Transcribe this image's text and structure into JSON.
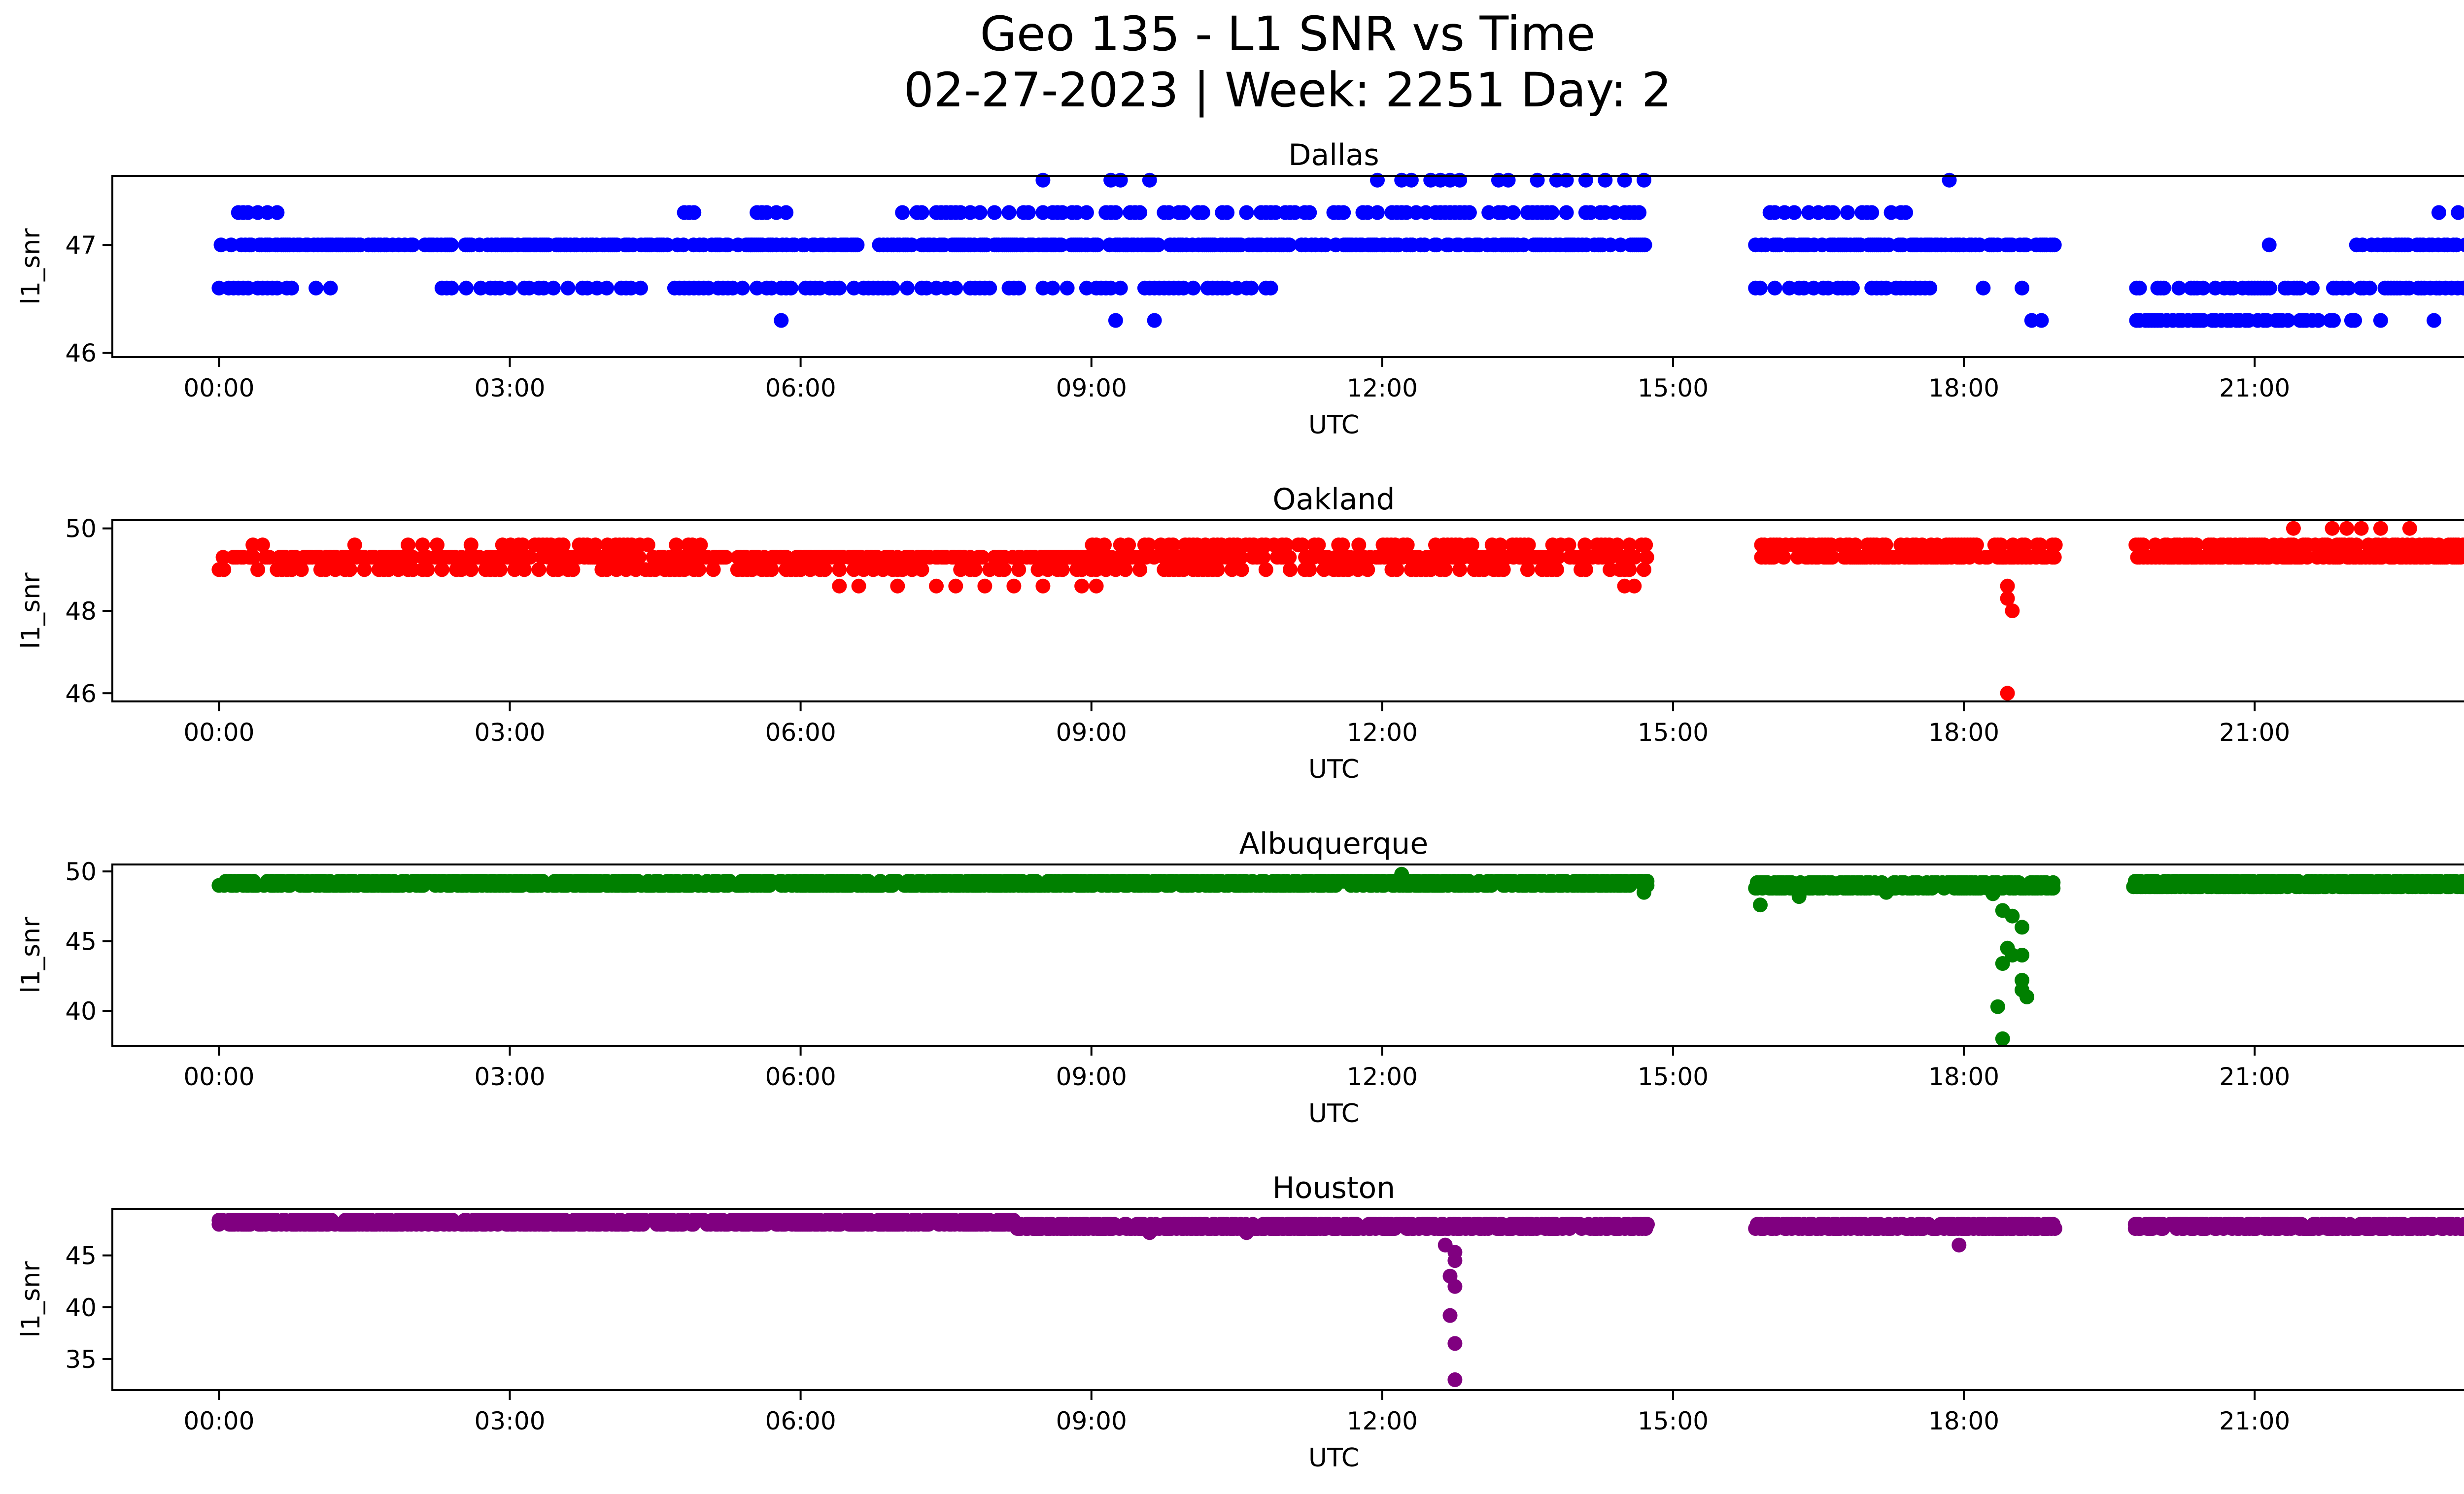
{
  "figure": {
    "title_line1": "Geo 135 - L1 SNR vs Time",
    "title_line2": "02-27-2023 | Week: 2251 Day: 2"
  },
  "chart_data": [
    {
      "type": "scatter",
      "title": "Dallas",
      "xlabel": "UTC",
      "ylabel": "l1_snr",
      "color": "#0000ff",
      "xlim": [
        -1.1,
        24.1
      ],
      "ylim": [
        45.96,
        47.64
      ],
      "x_ticks": [
        "00:00",
        "03:00",
        "06:00",
        "09:00",
        "12:00",
        "15:00",
        "18:00",
        "21:00",
        "00:00"
      ],
      "y_ticks": [
        46,
        47
      ],
      "segments": [
        {
          "start": 0.0,
          "end": 14.75,
          "levels": [
            47.0
          ],
          "density": 12
        },
        {
          "start": 0.0,
          "end": 11.3,
          "levels": [
            46.6
          ],
          "density": 5,
          "gaps": [
            [
              0.8,
              1.0
            ],
            [
              1.2,
              2.3
            ],
            [
              3.0,
              3.1
            ]
          ]
        },
        {
          "start": 0.15,
          "end": 14.75,
          "levels": [
            47.3
          ],
          "density": 5,
          "gaps": [
            [
              0.75,
              4.15
            ],
            [
              4.25,
              4.7
            ],
            [
              4.9,
              5.3
            ],
            [
              6.0,
              7.0
            ]
          ]
        },
        {
          "start": 15.85,
          "end": 18.95,
          "levels": [
            47.0
          ],
          "density": 12
        },
        {
          "start": 15.85,
          "end": 17.7,
          "levels": [
            46.6
          ],
          "density": 5
        },
        {
          "start": 16.0,
          "end": 17.7,
          "levels": [
            47.3
          ],
          "density": 5
        },
        {
          "start": 19.75,
          "end": 22.05,
          "levels": [
            46.3
          ],
          "density": 8
        },
        {
          "start": 19.75,
          "end": 24.0,
          "levels": [
            46.6
          ],
          "density": 8
        },
        {
          "start": 22.05,
          "end": 24.0,
          "levels": [
            47.0
          ],
          "density": 8
        }
      ],
      "points": [
        [
          5.8,
          46.3
        ],
        [
          9.25,
          46.3
        ],
        [
          9.65,
          46.3
        ],
        [
          8.5,
          47.6
        ],
        [
          9.2,
          47.6
        ],
        [
          9.3,
          47.6
        ],
        [
          9.6,
          47.6
        ],
        [
          11.95,
          47.6
        ],
        [
          12.2,
          47.6
        ],
        [
          12.3,
          47.6
        ],
        [
          12.5,
          47.6
        ],
        [
          12.6,
          47.6
        ],
        [
          12.7,
          47.6
        ],
        [
          12.8,
          47.6
        ],
        [
          13.2,
          47.6
        ],
        [
          13.3,
          47.6
        ],
        [
          13.6,
          47.6
        ],
        [
          13.8,
          47.6
        ],
        [
          13.9,
          47.6
        ],
        [
          14.1,
          47.6
        ],
        [
          14.3,
          47.6
        ],
        [
          14.5,
          47.6
        ],
        [
          14.7,
          47.6
        ],
        [
          17.85,
          47.6
        ],
        [
          18.7,
          46.3
        ],
        [
          18.8,
          46.3
        ],
        [
          17.5,
          46.6
        ],
        [
          18.2,
          46.6
        ],
        [
          18.6,
          46.6
        ],
        [
          21.15,
          47.0
        ],
        [
          22.3,
          46.3
        ],
        [
          22.85,
          46.3
        ],
        [
          22.9,
          47.3
        ],
        [
          23.1,
          47.3
        ],
        [
          23.3,
          47.3
        ],
        [
          23.6,
          47.3
        ],
        [
          23.9,
          47.3
        ],
        [
          23.5,
          46.0
        ]
      ]
    },
    {
      "type": "scatter",
      "title": "Oakland",
      "xlabel": "UTC",
      "ylabel": "l1_snr",
      "color": "#ff0000",
      "xlim": [
        -1.1,
        24.1
      ],
      "ylim": [
        45.8,
        50.2
      ],
      "x_ticks": [
        "00:00",
        "03:00",
        "06:00",
        "09:00",
        "12:00",
        "15:00",
        "18:00",
        "21:00",
        "00:00"
      ],
      "y_ticks": [
        46,
        48,
        50
      ],
      "segments": [
        {
          "start": 0.0,
          "end": 14.75,
          "levels": [
            49.3
          ],
          "density": 12
        },
        {
          "start": 0.0,
          "end": 14.75,
          "levels": [
            49.0
          ],
          "density": 5
        },
        {
          "start": 2.8,
          "end": 14.75,
          "levels": [
            49.6
          ],
          "density": 6,
          "gaps": [
            [
              5.0,
              9.0
            ]
          ]
        },
        {
          "start": 15.85,
          "end": 18.95,
          "levels": [
            49.3
          ],
          "density": 12
        },
        {
          "start": 15.85,
          "end": 18.95,
          "levels": [
            49.6
          ],
          "density": 8
        },
        {
          "start": 19.75,
          "end": 24.0,
          "levels": [
            49.3
          ],
          "density": 12
        },
        {
          "start": 19.75,
          "end": 24.0,
          "levels": [
            49.6
          ],
          "density": 10
        }
      ],
      "points": [
        [
          0.35,
          49.6
        ],
        [
          0.45,
          49.6
        ],
        [
          1.4,
          49.6
        ],
        [
          1.95,
          49.6
        ],
        [
          2.1,
          49.6
        ],
        [
          2.25,
          49.6
        ],
        [
          2.6,
          49.6
        ],
        [
          6.4,
          48.6
        ],
        [
          6.6,
          48.6
        ],
        [
          7.0,
          48.6
        ],
        [
          7.4,
          48.6
        ],
        [
          7.6,
          48.6
        ],
        [
          7.9,
          48.6
        ],
        [
          8.2,
          48.6
        ],
        [
          8.5,
          48.6
        ],
        [
          8.9,
          48.6
        ],
        [
          9.05,
          48.6
        ],
        [
          14.5,
          48.6
        ],
        [
          14.6,
          48.6
        ],
        [
          18.45,
          48.6
        ],
        [
          18.45,
          48.3
        ],
        [
          18.5,
          48.0
        ],
        [
          18.45,
          46.0
        ],
        [
          21.4,
          50.0
        ],
        [
          21.8,
          50.0
        ],
        [
          21.95,
          50.0
        ],
        [
          22.1,
          50.0
        ],
        [
          22.3,
          50.0
        ],
        [
          22.6,
          50.0
        ]
      ]
    },
    {
      "type": "scatter",
      "title": "Albuquerque",
      "xlabel": "UTC",
      "ylabel": "l1_snr",
      "color": "#008000",
      "xlim": [
        -1.1,
        24.1
      ],
      "ylim": [
        37.5,
        50.5
      ],
      "x_ticks": [
        "00:00",
        "03:00",
        "06:00",
        "09:00",
        "12:00",
        "15:00",
        "18:00",
        "21:00",
        "00:00"
      ],
      "y_ticks": [
        40,
        45,
        50
      ],
      "segments": [
        {
          "start": 0.0,
          "end": 14.75,
          "levels": [
            49.0,
            49.3
          ],
          "density": 14
        },
        {
          "start": 15.85,
          "end": 18.95,
          "levels": [
            48.8,
            49.2
          ],
          "density": 14
        },
        {
          "start": 19.75,
          "end": 24.0,
          "levels": [
            48.9,
            49.3
          ],
          "density": 14
        }
      ],
      "points": [
        [
          12.2,
          49.8
        ],
        [
          14.7,
          48.5
        ],
        [
          15.9,
          47.6
        ],
        [
          16.3,
          48.2
        ],
        [
          17.2,
          48.5
        ],
        [
          18.3,
          48.4
        ],
        [
          18.4,
          47.2
        ],
        [
          18.5,
          46.8
        ],
        [
          18.6,
          46.0
        ],
        [
          18.45,
          44.5
        ],
        [
          18.5,
          44.0
        ],
        [
          18.6,
          44.0
        ],
        [
          18.4,
          43.4
        ],
        [
          18.6,
          42.2
        ],
        [
          18.6,
          41.5
        ],
        [
          18.65,
          41.0
        ],
        [
          18.35,
          40.3
        ],
        [
          18.4,
          38.0
        ]
      ]
    },
    {
      "type": "scatter",
      "title": "Houston",
      "xlabel": "UTC",
      "ylabel": "l1_snr",
      "color": "#800080",
      "xlim": [
        -1.1,
        24.1
      ],
      "ylim": [
        32.0,
        49.5
      ],
      "x_ticks": [
        "00:00",
        "03:00",
        "06:00",
        "09:00",
        "12:00",
        "15:00",
        "18:00",
        "21:00",
        "00:00"
      ],
      "y_ticks": [
        35,
        40,
        45
      ],
      "segments": [
        {
          "start": 0.0,
          "end": 8.2,
          "levels": [
            48.0,
            48.4
          ],
          "density": 14
        },
        {
          "start": 8.2,
          "end": 14.75,
          "levels": [
            47.6,
            48.0
          ],
          "density": 14
        },
        {
          "start": 15.85,
          "end": 18.95,
          "levels": [
            47.6,
            48.0
          ],
          "density": 14
        },
        {
          "start": 19.75,
          "end": 24.0,
          "levels": [
            47.6,
            48.0
          ],
          "density": 14
        }
      ],
      "points": [
        [
          12.65,
          46.0
        ],
        [
          12.75,
          45.3
        ],
        [
          12.75,
          44.5
        ],
        [
          12.7,
          43.0
        ],
        [
          12.75,
          42.0
        ],
        [
          12.7,
          39.2
        ],
        [
          12.75,
          36.5
        ],
        [
          12.75,
          33.0
        ],
        [
          17.95,
          46.0
        ],
        [
          9.6,
          47.2
        ],
        [
          10.6,
          47.2
        ]
      ]
    }
  ]
}
